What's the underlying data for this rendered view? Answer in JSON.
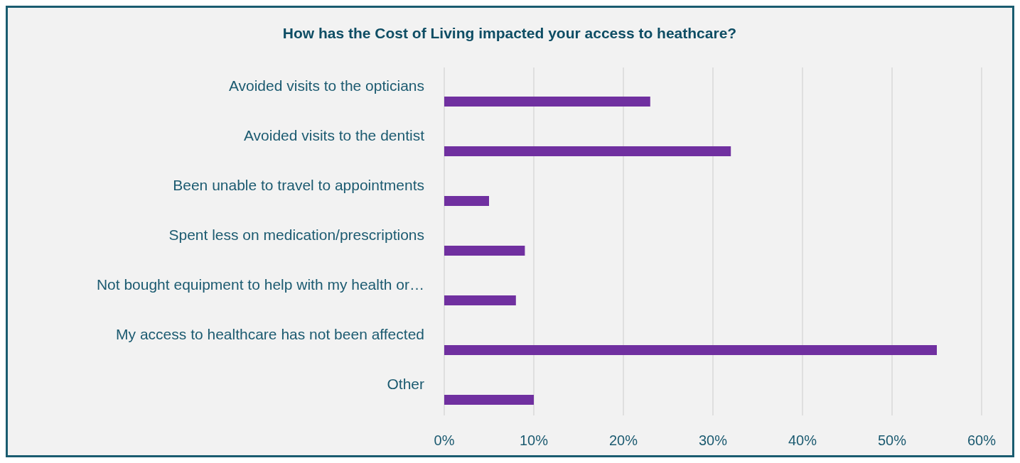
{
  "chart_data": {
    "type": "bar",
    "orientation": "horizontal",
    "title": "How has the Cost of Living impacted your access to heathcare?",
    "categories": [
      "Avoided visits to the opticians",
      "Avoided visits to the dentist",
      "Been unable to travel to appointments",
      "Spent less on medication/prescriptions",
      "Not bought equipment to help with my health or…",
      "My access to healthcare has not been affected",
      "Other"
    ],
    "values": [
      23,
      32,
      5,
      9,
      8,
      55,
      10
    ],
    "color": "#7030a0",
    "xlim": [
      0,
      60
    ],
    "xticks": [
      {
        "value": 0,
        "label": "0%"
      },
      {
        "value": 10,
        "label": "10%"
      },
      {
        "value": 20,
        "label": "20%"
      },
      {
        "value": 30,
        "label": "30%"
      },
      {
        "value": 40,
        "label": "40%"
      },
      {
        "value": 50,
        "label": "50%"
      },
      {
        "value": 60,
        "label": "60%"
      }
    ],
    "grid": "x"
  }
}
